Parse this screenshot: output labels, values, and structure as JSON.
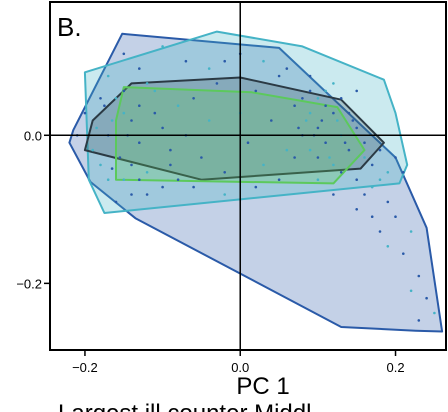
{
  "chart_data": {
    "type": "scatter",
    "panel_label": "B.",
    "xlabel": "PC 1",
    "ylabel": "",
    "subtitle": "Largest ill counter Middl",
    "xlim": [
      -0.245,
      0.265
    ],
    "ylim": [
      -0.29,
      0.18
    ],
    "x_ticks": [
      -0.2,
      0.0,
      0.2
    ],
    "x_tick_labels": [
      "−0.2",
      "0.0",
      "0.2"
    ],
    "y_ticks": [
      0.0,
      -0.2
    ],
    "y_tick_labels": [
      "0.0",
      "−0.2"
    ],
    "zero_lines": true,
    "grid": false,
    "colors": {
      "dark_blue": "#2a5aa8",
      "cyan": "#45b3c6",
      "dark_gray": "#2b3a44",
      "green": "#5cc95c"
    },
    "hulls": [
      {
        "color": "#2a5aa8",
        "fill_opacity": 0.28,
        "points": [
          [
            -0.152,
            0.137
          ],
          [
            0.05,
            0.118
          ],
          [
            0.2,
            -0.03
          ],
          [
            0.24,
            -0.125
          ],
          [
            0.26,
            -0.265
          ],
          [
            0.226,
            -0.264
          ],
          [
            0.13,
            -0.259
          ],
          [
            -0.135,
            -0.112
          ],
          [
            -0.193,
            -0.063
          ],
          [
            -0.22,
            -0.01
          ],
          [
            -0.215,
            0.007
          ]
        ]
      },
      {
        "color": "#45b3c6",
        "fill_opacity": 0.28,
        "points": [
          [
            -0.2,
            0.085
          ],
          [
            -0.03,
            0.14
          ],
          [
            0.08,
            0.12
          ],
          [
            0.185,
            0.075
          ],
          [
            0.2,
            0.03
          ],
          [
            0.215,
            -0.04
          ],
          [
            0.205,
            -0.065
          ],
          [
            -0.175,
            -0.105
          ],
          [
            -0.195,
            -0.06
          ]
        ]
      },
      {
        "color": "#2b3a44",
        "fill_opacity": 0.22,
        "points": [
          [
            -0.14,
            0.07
          ],
          [
            0.0,
            0.078
          ],
          [
            0.13,
            0.048
          ],
          [
            0.185,
            -0.01
          ],
          [
            0.155,
            -0.045
          ],
          [
            -0.05,
            -0.06
          ],
          [
            -0.2,
            -0.02
          ],
          [
            -0.19,
            0.02
          ]
        ]
      },
      {
        "color": "#5cc95c",
        "fill_opacity": 0.28,
        "points": [
          [
            -0.15,
            0.065
          ],
          [
            0.015,
            0.058
          ],
          [
            0.125,
            0.038
          ],
          [
            0.16,
            -0.02
          ],
          [
            0.12,
            -0.065
          ],
          [
            -0.16,
            -0.06
          ],
          [
            -0.16,
            0.02
          ]
        ]
      }
    ],
    "points": [
      {
        "x": -0.16,
        "y": 0.05
      },
      {
        "x": -0.155,
        "y": -0.03
      },
      {
        "x": -0.17,
        "y": 0.0
      },
      {
        "x": -0.18,
        "y": -0.04
      },
      {
        "x": -0.14,
        "y": 0.02
      },
      {
        "x": -0.13,
        "y": 0.04
      },
      {
        "x": -0.12,
        "y": -0.05
      },
      {
        "x": -0.11,
        "y": 0.03
      },
      {
        "x": -0.15,
        "y": 0.06
      },
      {
        "x": -0.19,
        "y": -0.02
      },
      {
        "x": -0.21,
        "y": 0.0
      },
      {
        "x": -0.2,
        "y": 0.03
      },
      {
        "x": -0.17,
        "y": -0.06
      },
      {
        "x": -0.14,
        "y": -0.08
      },
      {
        "x": -0.16,
        "y": -0.09
      },
      {
        "x": -0.12,
        "y": 0.07
      },
      {
        "x": -0.1,
        "y": 0.01
      },
      {
        "x": -0.09,
        "y": -0.02
      },
      {
        "x": -0.08,
        "y": 0.04
      },
      {
        "x": -0.13,
        "y": -0.01
      },
      {
        "x": -0.175,
        "y": 0.04
      },
      {
        "x": -0.185,
        "y": 0.01
      },
      {
        "x": -0.165,
        "y": -0.045
      },
      {
        "x": -0.145,
        "y": 0.0
      },
      {
        "x": -0.15,
        "y": -0.06
      },
      {
        "x": -0.12,
        "y": -0.08
      },
      {
        "x": -0.1,
        "y": -0.07
      },
      {
        "x": -0.11,
        "y": 0.06
      },
      {
        "x": -0.06,
        "y": 0.05
      },
      {
        "x": -0.05,
        "y": -0.03
      },
      {
        "x": -0.04,
        "y": 0.02
      },
      {
        "x": -0.03,
        "y": 0.07
      },
      {
        "x": -0.02,
        "y": -0.05
      },
      {
        "x": 0.0,
        "y": 0.03
      },
      {
        "x": 0.01,
        "y": -0.01
      },
      {
        "x": 0.02,
        "y": 0.06
      },
      {
        "x": 0.03,
        "y": -0.04
      },
      {
        "x": 0.04,
        "y": 0.02
      },
      {
        "x": 0.05,
        "y": 0.08
      },
      {
        "x": 0.06,
        "y": -0.02
      },
      {
        "x": 0.07,
        "y": 0.04
      },
      {
        "x": 0.08,
        "y": 0.0
      },
      {
        "x": 0.09,
        "y": 0.03
      },
      {
        "x": 0.1,
        "y": 0.01
      },
      {
        "x": 0.11,
        "y": -0.01
      },
      {
        "x": 0.085,
        "y": 0.02
      },
      {
        "x": 0.095,
        "y": 0.0
      },
      {
        "x": 0.105,
        "y": 0.02
      },
      {
        "x": 0.09,
        "y": -0.02
      },
      {
        "x": 0.1,
        "y": -0.03
      },
      {
        "x": 0.12,
        "y": 0.03
      },
      {
        "x": 0.13,
        "y": 0.0
      },
      {
        "x": 0.14,
        "y": -0.02
      },
      {
        "x": 0.15,
        "y": 0.01
      },
      {
        "x": 0.12,
        "y": -0.04
      },
      {
        "x": 0.13,
        "y": 0.05
      },
      {
        "x": 0.14,
        "y": 0.03
      },
      {
        "x": 0.11,
        "y": 0.06
      },
      {
        "x": 0.08,
        "y": 0.05
      },
      {
        "x": 0.07,
        "y": -0.03
      },
      {
        "x": 0.16,
        "y": -0.03
      },
      {
        "x": 0.17,
        "y": -0.04
      },
      {
        "x": 0.18,
        "y": -0.02
      },
      {
        "x": 0.19,
        "y": -0.05
      },
      {
        "x": 0.2,
        "y": -0.03
      },
      {
        "x": 0.21,
        "y": -0.05
      },
      {
        "x": 0.17,
        "y": -0.07
      },
      {
        "x": 0.15,
        "y": -0.06
      },
      {
        "x": 0.16,
        "y": -0.08
      },
      {
        "x": 0.18,
        "y": -0.06
      },
      {
        "x": 0.19,
        "y": -0.09
      },
      {
        "x": 0.2,
        "y": -0.11
      },
      {
        "x": 0.22,
        "y": -0.13
      },
      {
        "x": 0.21,
        "y": -0.16
      },
      {
        "x": 0.23,
        "y": -0.19
      },
      {
        "x": 0.22,
        "y": -0.21
      },
      {
        "x": 0.24,
        "y": -0.22
      },
      {
        "x": 0.23,
        "y": -0.25
      },
      {
        "x": 0.25,
        "y": -0.24
      },
      {
        "x": 0.18,
        "y": -0.13
      },
      {
        "x": 0.17,
        "y": -0.11
      },
      {
        "x": 0.19,
        "y": -0.15
      },
      {
        "x": 0.15,
        "y": -0.1
      },
      {
        "x": 0.12,
        "y": -0.08
      },
      {
        "x": 0.1,
        "y": -0.06
      },
      {
        "x": 0.05,
        "y": -0.06
      },
      {
        "x": 0.02,
        "y": -0.07
      },
      {
        "x": -0.02,
        "y": -0.08
      },
      {
        "x": -0.06,
        "y": -0.07
      },
      {
        "x": -0.08,
        "y": -0.06
      },
      {
        "x": -0.04,
        "y": 0.09
      },
      {
        "x": -0.02,
        "y": 0.1
      },
      {
        "x": 0.0,
        "y": 0.11
      },
      {
        "x": 0.03,
        "y": 0.1
      },
      {
        "x": 0.06,
        "y": 0.09
      },
      {
        "x": 0.09,
        "y": 0.08
      },
      {
        "x": 0.12,
        "y": 0.07
      },
      {
        "x": 0.15,
        "y": 0.06
      },
      {
        "x": -0.07,
        "y": 0.1
      },
      {
        "x": -0.1,
        "y": 0.12
      },
      {
        "x": -0.13,
        "y": 0.09
      },
      {
        "x": -0.15,
        "y": 0.11
      },
      {
        "x": -0.17,
        "y": 0.08
      },
      {
        "x": -0.09,
        "y": -0.04
      },
      {
        "x": -0.07,
        "y": 0.0
      },
      {
        "x": -0.15,
        "y": 0.03
      },
      {
        "x": -0.14,
        "y": -0.04
      },
      {
        "x": -0.13,
        "y": -0.06
      },
      {
        "x": -0.165,
        "y": 0.02
      },
      {
        "x": -0.18,
        "y": 0.05
      },
      {
        "x": 0.11,
        "y": 0.04
      },
      {
        "x": 0.125,
        "y": 0.02
      },
      {
        "x": 0.135,
        "y": -0.01
      },
      {
        "x": 0.145,
        "y": 0.02
      },
      {
        "x": 0.115,
        "y": -0.03
      },
      {
        "x": 0.09,
        "y": 0.06
      },
      {
        "x": 0.075,
        "y": 0.01
      },
      {
        "x": 0.1,
        "y": 0.05
      },
      {
        "x": 0.13,
        "y": -0.05
      },
      {
        "x": 0.16,
        "y": -0.01
      }
    ]
  }
}
